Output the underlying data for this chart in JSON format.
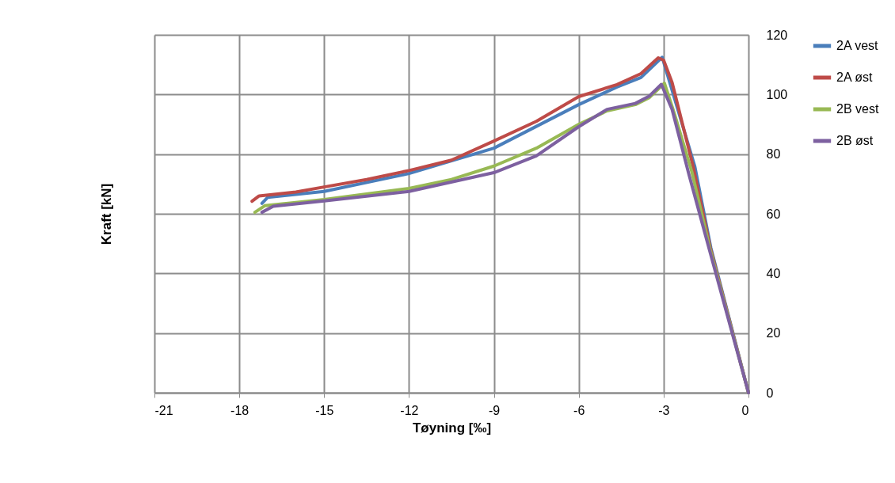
{
  "chart_data": {
    "type": "line",
    "xlabel": "Tøyning [‰]",
    "ylabel": "Kraft [kN]",
    "xlim": [
      -21,
      0
    ],
    "xticks": [
      -21,
      -18,
      -15,
      -12,
      -9,
      -6,
      -3,
      0
    ],
    "ylim": [
      0,
      120
    ],
    "yticks": [
      0,
      20,
      40,
      60,
      80,
      100,
      120
    ],
    "grid": true,
    "legend": "right",
    "marker": "none",
    "line_style": "solid",
    "series": [
      {
        "name": "2A vest",
        "color": "#4a7ebb",
        "x": [
          -17.2,
          -17,
          -15,
          -12,
          -9,
          -6,
          -4.65,
          -3.8,
          -3.05,
          -1.9,
          -1.33,
          0
        ],
        "values": [
          63.5,
          65.5,
          67.5,
          73.5,
          82,
          96.6,
          102.5,
          105.7,
          112.5,
          76,
          48.6,
          0
        ]
      },
      {
        "name": "2A øst",
        "color": "#be4b48",
        "x": [
          -17.55,
          -17.3,
          -16,
          -15,
          -13.5,
          -12,
          -10.5,
          -9,
          -7.5,
          -6,
          -4.65,
          -3.8,
          -3.19,
          -3,
          -2.7,
          -1.96,
          -1.35,
          0
        ],
        "values": [
          64.2,
          66,
          67.3,
          69,
          71.5,
          74.5,
          78,
          84.4,
          91,
          99.3,
          103.3,
          107,
          112.3,
          111.5,
          104,
          76,
          48.6,
          0
        ]
      },
      {
        "name": "2B vest",
        "color": "#98b954",
        "x": [
          -17.45,
          -17.1,
          -15,
          -12,
          -10.5,
          -9,
          -7.5,
          -6,
          -5,
          -4,
          -3.5,
          -2.97,
          -2.6,
          -2.0,
          -1.37,
          0
        ],
        "values": [
          60.5,
          62.7,
          64.8,
          68.5,
          71.5,
          76,
          82,
          90,
          94.5,
          96.6,
          99,
          103.8,
          93,
          74,
          48.6,
          0
        ]
      },
      {
        "name": "2B øst",
        "color": "#7d60a0",
        "x": [
          -17.2,
          -16.8,
          -15,
          -12,
          -9,
          -7.5,
          -6,
          -5,
          -4,
          -3.5,
          -3.08,
          -2.7,
          -2.1,
          -1.4,
          0
        ],
        "values": [
          60.5,
          62.5,
          64.3,
          67.5,
          73.8,
          79.4,
          89.2,
          95,
          97,
          99.5,
          103.4,
          95,
          73,
          48.6,
          0
        ]
      }
    ]
  }
}
